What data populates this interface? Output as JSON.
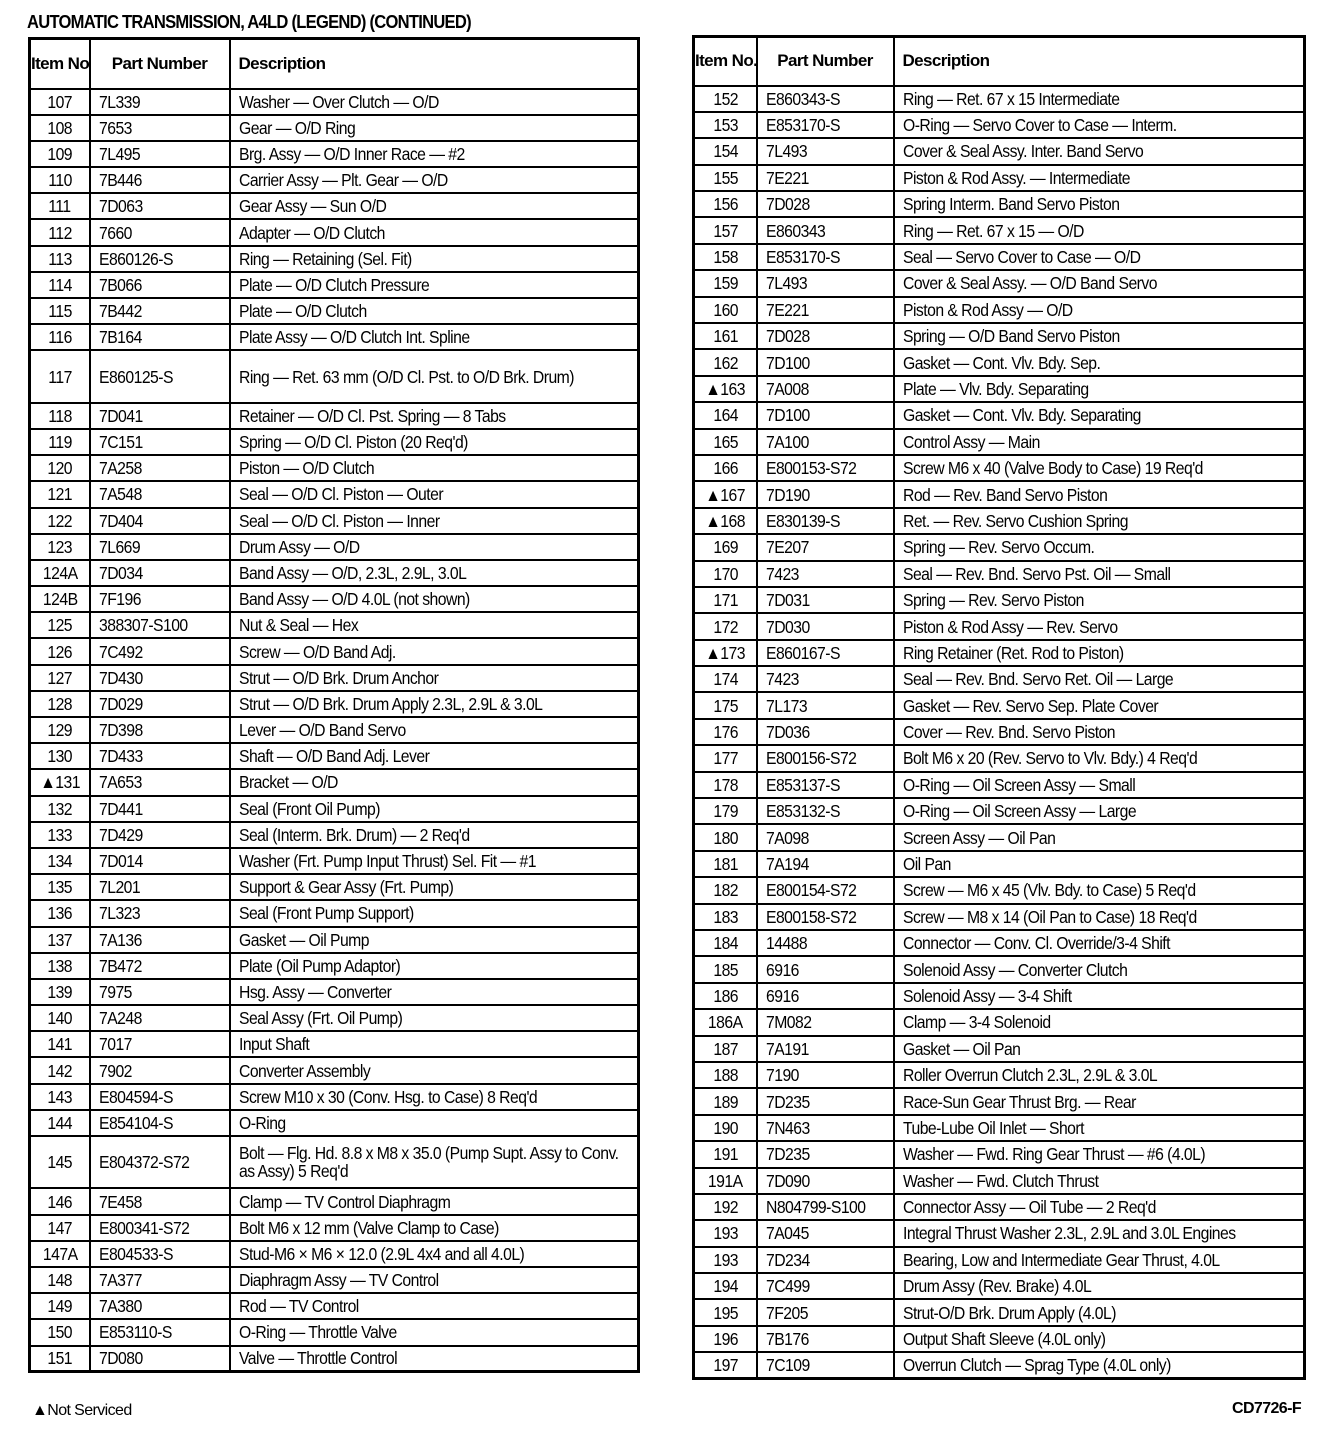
{
  "title": "AUTOMATIC TRANSMISSION, A4LD (LEGEND) (CONTINUED)",
  "headers": {
    "item": "Item No.",
    "part": "Part Number",
    "description": "Description"
  },
  "left_rows": [
    [
      "107",
      "7L339",
      "Washer — Over Clutch — O/D"
    ],
    [
      "108",
      "7653",
      "Gear — O/D Ring"
    ],
    [
      "109",
      "7L495",
      "Brg. Assy — O/D Inner Race — #2"
    ],
    [
      "110",
      "7B446",
      "Carrier Assy — Plt. Gear — O/D"
    ],
    [
      "111",
      "7D063",
      "Gear Assy — Sun O/D"
    ],
    [
      "112",
      "7660",
      "Adapter — O/D Clutch"
    ],
    [
      "113",
      "E860126-S",
      "Ring — Retaining (Sel. Fit)"
    ],
    [
      "114",
      "7B066",
      "Plate — O/D Clutch Pressure"
    ],
    [
      "115",
      "7B442",
      "Plate — O/D Clutch"
    ],
    [
      "116",
      "7B164",
      "Plate Assy — O/D Clutch Int. Spline"
    ],
    [
      "117",
      "E860125-S",
      "Ring — Ret. 63 mm (O/D Cl. Pst. to O/D Brk. Drum)"
    ],
    [
      "118",
      "7D041",
      "Retainer — O/D Cl. Pst. Spring — 8 Tabs"
    ],
    [
      "119",
      "7C151",
      "Spring — O/D Cl. Piston (20 Req'd)"
    ],
    [
      "120",
      "7A258",
      "Piston — O/D Clutch"
    ],
    [
      "121",
      "7A548",
      "Seal — O/D Cl. Piston — Outer"
    ],
    [
      "122",
      "7D404",
      "Seal — O/D Cl. Piston — Inner"
    ],
    [
      "123",
      "7L669",
      "Drum Assy — O/D"
    ],
    [
      "124A",
      "7D034",
      "Band Assy — O/D, 2.3L, 2.9L, 3.0L"
    ],
    [
      "124B",
      "7F196",
      "Band Assy — O/D 4.0L (not shown)"
    ],
    [
      "125",
      "388307-S100",
      "Nut & Seal — Hex"
    ],
    [
      "126",
      "7C492",
      "Screw — O/D Band Adj."
    ],
    [
      "127",
      "7D430",
      "Strut — O/D Brk. Drum Anchor"
    ],
    [
      "128",
      "7D029",
      "Strut — O/D Brk. Drum Apply 2.3L, 2.9L & 3.0L"
    ],
    [
      "129",
      "7D398",
      "Lever — O/D Band Servo"
    ],
    [
      "130",
      "7D433",
      "Shaft — O/D Band Adj. Lever"
    ],
    [
      "▲131",
      "7A653",
      "Bracket — O/D"
    ],
    [
      "132",
      "7D441",
      "Seal (Front Oil Pump)"
    ],
    [
      "133",
      "7D429",
      "Seal (Interm. Brk. Drum) — 2 Req'd"
    ],
    [
      "134",
      "7D014",
      "Washer (Frt. Pump Input Thrust) Sel. Fit — #1"
    ],
    [
      "135",
      "7L201",
      "Support & Gear Assy (Frt. Pump)"
    ],
    [
      "136",
      "7L323",
      "Seal (Front Pump Support)"
    ],
    [
      "137",
      "7A136",
      "Gasket — Oil Pump"
    ],
    [
      "138",
      "7B472",
      "Plate (Oil Pump Adaptor)"
    ],
    [
      "139",
      "7975",
      "Hsg. Assy — Converter"
    ],
    [
      "140",
      "7A248",
      "Seal Assy (Frt. Oil Pump)"
    ],
    [
      "141",
      "7017",
      "Input Shaft"
    ],
    [
      "142",
      "7902",
      "Converter Assembly"
    ],
    [
      "143",
      "E804594-S",
      "Screw M10 x 30 (Conv. Hsg. to Case) 8 Req'd"
    ],
    [
      "144",
      "E854104-S",
      "O-Ring"
    ],
    [
      "145",
      "E804372-S72",
      "Bolt — Flg. Hd. 8.8 x M8 x 35.0 (Pump Supt. Assy to Conv. as Assy) 5 Req'd"
    ],
    [
      "146",
      "7E458",
      "Clamp — TV Control Diaphragm"
    ],
    [
      "147",
      "E800341-S72",
      "Bolt M6 x 12 mm (Valve Clamp to Case)"
    ],
    [
      "147A",
      "E804533-S",
      "Stud-M6 × M6 × 12.0 (2.9L 4x4 and all 4.0L)"
    ],
    [
      "148",
      "7A377",
      "Diaphragm Assy — TV Control"
    ],
    [
      "149",
      "7A380",
      "Rod — TV Control"
    ],
    [
      "150",
      "E853110-S",
      "O-Ring — Throttle Valve"
    ],
    [
      "151",
      "7D080",
      "Valve — Throttle Control"
    ]
  ],
  "right_rows": [
    [
      "152",
      "E860343-S",
      "Ring — Ret. 67 x 15 Intermediate"
    ],
    [
      "153",
      "E853170-S",
      "O-Ring — Servo Cover to Case — Interm."
    ],
    [
      "154",
      "7L493",
      "Cover & Seal Assy. Inter. Band Servo"
    ],
    [
      "155",
      "7E221",
      "Piston & Rod Assy. — Intermediate"
    ],
    [
      "156",
      "7D028",
      "Spring Interm. Band Servo Piston"
    ],
    [
      "157",
      "E860343",
      "Ring — Ret. 67 x 15 — O/D"
    ],
    [
      "158",
      "E853170-S",
      "Seal — Servo Cover to Case — O/D"
    ],
    [
      "159",
      "7L493",
      "Cover & Seal Assy. — O/D Band Servo"
    ],
    [
      "160",
      "7E221",
      "Piston & Rod Assy — O/D"
    ],
    [
      "161",
      "7D028",
      "Spring — O/D Band Servo Piston"
    ],
    [
      "162",
      "7D100",
      "Gasket — Cont. Vlv. Bdy. Sep."
    ],
    [
      "▲163",
      "7A008",
      "Plate — Vlv. Bdy. Separating"
    ],
    [
      "164",
      "7D100",
      "Gasket — Cont. Vlv. Bdy. Separating"
    ],
    [
      "165",
      "7A100",
      "Control Assy — Main"
    ],
    [
      "166",
      "E800153-S72",
      "Screw M6 x 40 (Valve Body to Case) 19 Req'd"
    ],
    [
      "▲167",
      "7D190",
      "Rod — Rev. Band Servo Piston"
    ],
    [
      "▲168",
      "E830139-S",
      "Ret. — Rev. Servo Cushion Spring"
    ],
    [
      "169",
      "7E207",
      "Spring — Rev. Servo Occum."
    ],
    [
      "170",
      "7423",
      "Seal — Rev. Bnd. Servo Pst. Oil — Small"
    ],
    [
      "171",
      "7D031",
      "Spring — Rev. Servo Piston"
    ],
    [
      "172",
      "7D030",
      "Piston & Rod Assy — Rev. Servo"
    ],
    [
      "▲173",
      "E860167-S",
      "Ring Retainer (Ret. Rod to Piston)"
    ],
    [
      "174",
      "7423",
      "Seal — Rev. Bnd. Servo Ret. Oil — Large"
    ],
    [
      "175",
      "7L173",
      "Gasket — Rev. Servo Sep. Plate Cover"
    ],
    [
      "176",
      "7D036",
      "Cover — Rev. Bnd. Servo Piston"
    ],
    [
      "177",
      "E800156-S72",
      "Bolt M6 x 20 (Rev. Servo to Vlv. Bdy.) 4 Req'd"
    ],
    [
      "178",
      "E853137-S",
      "O-Ring — Oil Screen Assy — Small"
    ],
    [
      "179",
      "E853132-S",
      "O-Ring — Oil Screen Assy — Large"
    ],
    [
      "180",
      "7A098",
      "Screen Assy — Oil Pan"
    ],
    [
      "181",
      "7A194",
      "Oil Pan"
    ],
    [
      "182",
      "E800154-S72",
      "Screw — M6 x 45 (Vlv. Bdy. to Case) 5 Req'd"
    ],
    [
      "183",
      "E800158-S72",
      "Screw — M8 x 14 (Oil Pan to Case) 18 Req'd"
    ],
    [
      "184",
      "14488",
      "Connector — Conv. Cl. Override/3-4 Shift"
    ],
    [
      "185",
      "6916",
      "Solenoid Assy — Converter Clutch"
    ],
    [
      "186",
      "6916",
      "Solenoid Assy — 3-4 Shift"
    ],
    [
      "186A",
      "7M082",
      "Clamp — 3-4 Solenoid"
    ],
    [
      "187",
      "7A191",
      "Gasket — Oil Pan"
    ],
    [
      "188",
      "7190",
      "Roller Overrun Clutch 2.3L, 2.9L & 3.0L"
    ],
    [
      "189",
      "7D235",
      "Race-Sun Gear Thrust Brg. — Rear"
    ],
    [
      "190",
      "7N463",
      "Tube-Lube Oil Inlet — Short"
    ],
    [
      "191",
      "7D235",
      "Washer — Fwd. Ring Gear Thrust — #6 (4.0L)"
    ],
    [
      "191A",
      "7D090",
      "Washer — Fwd. Clutch Thrust"
    ],
    [
      "192",
      "N804799-S100",
      "Connector Assy — Oil Tube — 2 Req'd"
    ],
    [
      "193",
      "7A045",
      "Integral Thrust Washer 2.3L, 2.9L and 3.0L Engines"
    ],
    [
      "193",
      "7D234",
      "Bearing, Low and Intermediate Gear Thrust, 4.0L"
    ],
    [
      "194",
      "7C499",
      "Drum Assy (Rev. Brake) 4.0L"
    ],
    [
      "195",
      "7F205",
      "Strut-O/D Brk. Drum Apply (4.0L)"
    ],
    [
      "196",
      "7B176",
      "Output Shaft Sleeve (4.0L only)"
    ],
    [
      "197",
      "7C109",
      "Overrun Clutch — Sprag Type (4.0L only)"
    ]
  ],
  "footnote": "▲Not Serviced",
  "figure_code": "CD7726-F"
}
